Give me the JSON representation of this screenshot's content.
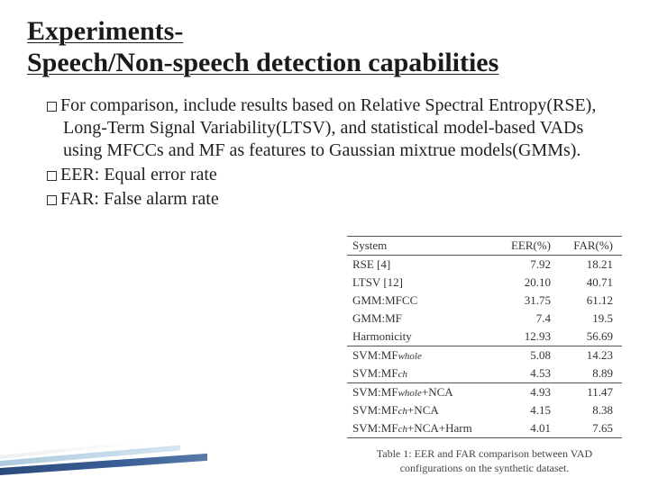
{
  "title_line1": "Experiments-",
  "title_line2": "Speech/Non-speech detection capabilities",
  "bullets": [
    "For comparison, include results based on Relative Spectral Entropy(RSE), Long-Term Signal Variability(LTSV), and statistical model-based VADs using MFCCs and MF as features to Gaussian mixtrue models(GMMs).",
    "EER: Equal error rate",
    "FAR: False alarm rate"
  ],
  "table": {
    "columns": [
      "System",
      "EER(%)",
      "FAR(%)"
    ],
    "rows": [
      {
        "system": "RSE [4]",
        "eer": "7.92",
        "far": "18.21",
        "sep": false
      },
      {
        "system": "LTSV [12]",
        "eer": "20.10",
        "far": "40.71",
        "sep": false
      },
      {
        "system": "GMM:MFCC",
        "eer": "31.75",
        "far": "61.12",
        "sep": false
      },
      {
        "system": "GMM:MF",
        "eer": "7.4",
        "far": "19.5",
        "sep": false
      },
      {
        "system": "Harmonicity",
        "eer": "12.93",
        "far": "56.69",
        "sep": false
      },
      {
        "system_html": "SVM:MF<span class='sub-it'>whole</span>",
        "eer": "5.08",
        "far": "14.23",
        "sep": true
      },
      {
        "system_html": "SVM:MF<span class='sub-it'>ch</span>",
        "eer": "4.53",
        "far": "8.89",
        "sep": false
      },
      {
        "system_html": "SVM:MF<span class='sub-it'>whole</span>+NCA",
        "eer": "4.93",
        "far": "11.47",
        "sep": true
      },
      {
        "system_html": "SVM:MF<span class='sub-it'>ch</span>+NCA",
        "eer": "4.15",
        "far": "8.38",
        "sep": false
      },
      {
        "system_html": "SVM:MF<span class='sub-it'>ch</span>+NCA+Harm",
        "eer": "4.01",
        "far": "7.65",
        "sep": false
      }
    ],
    "caption": "Table 1: EER and FAR comparison between VAD configurations on the synthetic dataset."
  },
  "styles": {
    "title_fontsize": 30,
    "body_fontsize": 20,
    "table_fontsize": 13,
    "caption_fontsize": 12,
    "text_color": "#222222",
    "table_border_color": "#555555",
    "background_color": "#ffffff",
    "deco_colors": [
      "#2b4a7a",
      "#9fc0d8",
      "#e6e6e6"
    ]
  }
}
